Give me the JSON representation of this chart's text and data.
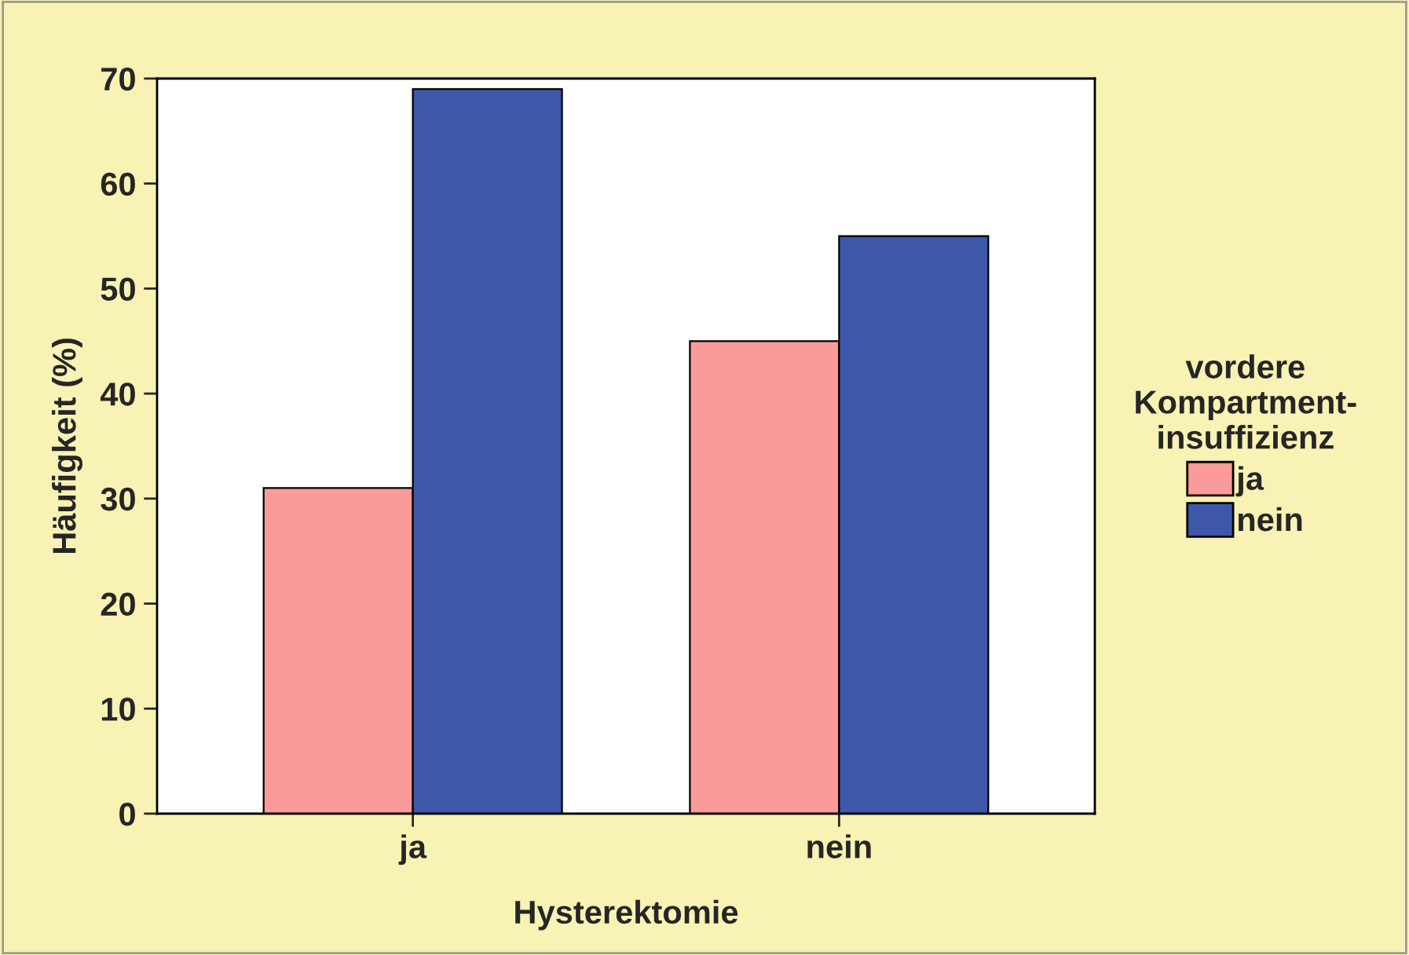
{
  "chart_data": {
    "type": "bar",
    "xlabel": "Hysterektomie",
    "ylabel": "Häufigkeit (%)",
    "legend_title": "vordere\nKompartment-\ninsuffizienz",
    "categories": [
      "ja",
      "nein"
    ],
    "series": [
      {
        "name": "ja",
        "color": "#fa9a9a",
        "values": [
          31,
          45
        ]
      },
      {
        "name": "nein",
        "color": "#3d58a9",
        "values": [
          69,
          55
        ]
      }
    ],
    "ylim": [
      0,
      70
    ],
    "yticks": [
      0,
      10,
      20,
      30,
      40,
      50,
      60,
      70
    ],
    "grid": false,
    "legend": "right"
  }
}
